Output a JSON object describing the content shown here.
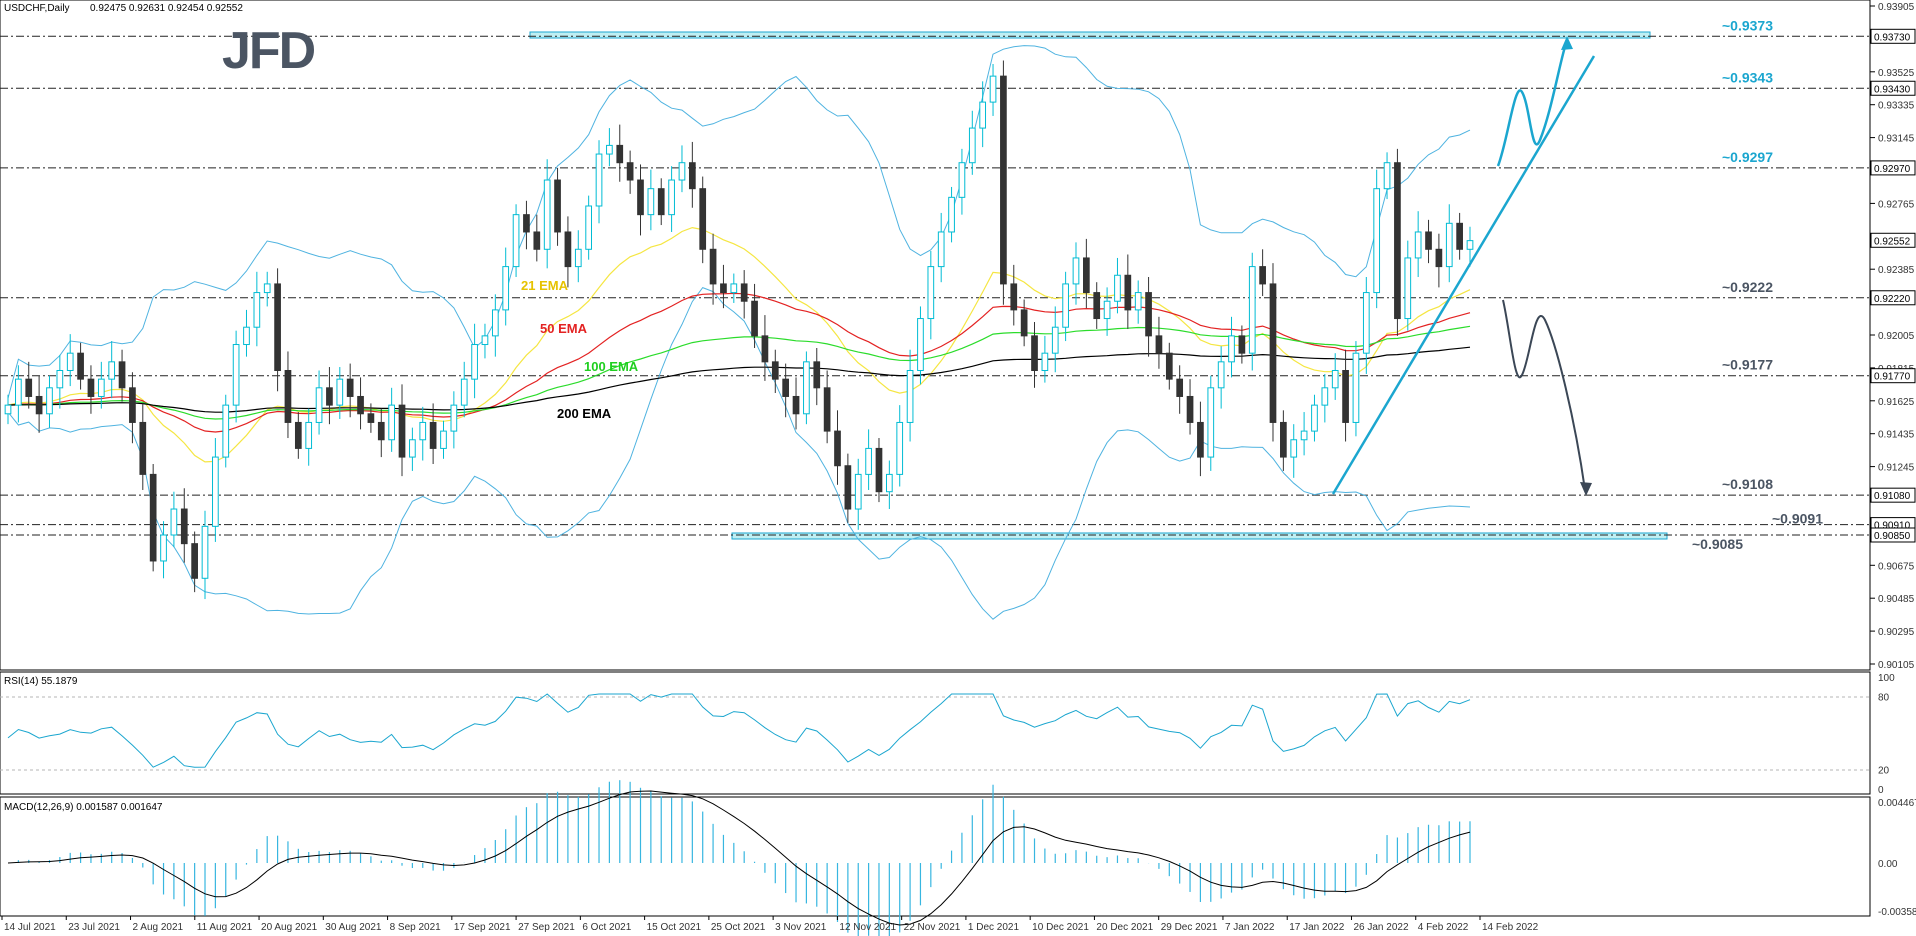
{
  "header": {
    "symbol": "USDCHF,Daily",
    "ohlc": "0.92475 0.92631 0.92454 0.92552"
  },
  "logo": "JFD",
  "colors": {
    "up": "#00bcd4",
    "down": "#333333",
    "ema21": "#f5e642",
    "ema50": "#e32222",
    "ema100": "#2bdc2b",
    "ema200": "#000000",
    "bands": "#4fb3e0",
    "annot": "#1ba6cf",
    "zone": "#bfeff3",
    "rsi": "#1ba6cf",
    "macd_hist": "#37b6e0",
    "macd_signal": "#000000",
    "arrow_down": "#3b4756"
  },
  "price_axis_ticks": [
    "0.93905",
    "0.93525",
    "0.93335",
    "0.93145",
    "0.92765",
    "0.92385",
    "0.92005",
    "0.91815",
    "0.91625",
    "0.91435",
    "0.91245",
    "0.90675",
    "0.90485",
    "0.90295",
    "0.90105"
  ],
  "price_boxes": [
    {
      "label": "0.93730",
      "value": 0.9373,
      "style": "box"
    },
    {
      "label": "0.93430",
      "value": 0.9343,
      "style": "box"
    },
    {
      "label": "0.92970",
      "value": 0.9297,
      "style": "box"
    },
    {
      "label": "0.92552",
      "value": 0.92552,
      "style": "box"
    },
    {
      "label": "0.92220",
      "value": 0.9222,
      "style": "box"
    },
    {
      "label": "0.91770",
      "value": 0.9177,
      "style": "box"
    },
    {
      "label": "0.91080",
      "value": 0.9108,
      "style": "box"
    },
    {
      "label": "0.90910",
      "value": 0.9091,
      "style": "box"
    },
    {
      "label": "0.90850",
      "value": 0.9085,
      "style": "box"
    }
  ],
  "levels": [
    {
      "value": 0.9373,
      "label": "~0.9373",
      "color": "#1ba6cf",
      "dash": true
    },
    {
      "value": 0.9343,
      "label": "~0.9343",
      "color": "#1ba6cf",
      "dash": true
    },
    {
      "value": 0.9297,
      "label": "~0.9297",
      "color": "#1ba6cf",
      "dash": true
    },
    {
      "value": 0.9222,
      "label": "~0.9222",
      "color": "#4b5563",
      "dash": true
    },
    {
      "value": 0.9177,
      "label": "~0.9177",
      "color": "#4b5563",
      "dash": true
    },
    {
      "value": 0.9108,
      "label": "~0.9108",
      "color": "#4b5563",
      "dash": true
    },
    {
      "value": 0.9091,
      "label": "~0.9091",
      "color": "#4b5563",
      "dash": true
    },
    {
      "value": 0.9085,
      "label": "~0.9085",
      "color": "#4b5563",
      "dash": true
    }
  ],
  "ema_labels": [
    {
      "text": "21 EMA",
      "color": "#e6c200"
    },
    {
      "text": "50 EMA",
      "color": "#e32222"
    },
    {
      "text": "100 EMA",
      "color": "#1fcf1f"
    },
    {
      "text": "200 EMA",
      "color": "#000000"
    }
  ],
  "x_axis": [
    "14 Jul 2021",
    "23 Jul 2021",
    "2 Aug 2021",
    "11 Aug 2021",
    "20 Aug 2021",
    "30 Aug 2021",
    "8 Sep 2021",
    "17 Sep 2021",
    "27 Sep 2021",
    "6 Oct 2021",
    "15 Oct 2021",
    "25 Oct 2021",
    "3 Nov 2021",
    "12 Nov 2021",
    "22 Nov 2021",
    "1 Dec 2021",
    "10 Dec 2021",
    "20 Dec 2021",
    "29 Dec 2021",
    "7 Jan 2022",
    "17 Jan 2022",
    "26 Jan 2022",
    "4 Feb 2022",
    "14 Feb 2022"
  ],
  "rsi": {
    "title": "RSI(14) 55.1879",
    "ticks": [
      "100",
      "80",
      "20",
      "0"
    ]
  },
  "macd": {
    "title": "MACD(12,26,9) 0.001587 0.001647",
    "ticks": [
      "0.004467",
      "0.00",
      "-0.003588"
    ]
  },
  "chart_data": {
    "type": "candlestick",
    "ylim": [
      0.90105,
      0.93905
    ],
    "y_scale": "linear",
    "close": [
      0.916,
      0.9175,
      0.9165,
      0.9155,
      0.917,
      0.918,
      0.919,
      0.9175,
      0.9165,
      0.9175,
      0.9185,
      0.917,
      0.915,
      0.912,
      0.907,
      0.9085,
      0.91,
      0.908,
      0.906,
      0.909,
      0.913,
      0.916,
      0.9195,
      0.9205,
      0.9225,
      0.923,
      0.918,
      0.915,
      0.9135,
      0.915,
      0.917,
      0.916,
      0.9175,
      0.9165,
      0.9155,
      0.915,
      0.914,
      0.916,
      0.913,
      0.914,
      0.915,
      0.9135,
      0.9145,
      0.916,
      0.9175,
      0.9195,
      0.92,
      0.9215,
      0.924,
      0.927,
      0.926,
      0.925,
      0.929,
      0.926,
      0.924,
      0.925,
      0.9275,
      0.9305,
      0.931,
      0.93,
      0.929,
      0.927,
      0.9285,
      0.927,
      0.929,
      0.93,
      0.9285,
      0.925,
      0.923,
      0.9225,
      0.923,
      0.922,
      0.92,
      0.9185,
      0.9175,
      0.9165,
      0.9155,
      0.9185,
      0.917,
      0.9145,
      0.9125,
      0.91,
      0.912,
      0.9135,
      0.911,
      0.912,
      0.915,
      0.918,
      0.921,
      0.924,
      0.926,
      0.928,
      0.93,
      0.932,
      0.9335,
      0.935,
      0.923,
      0.9215,
      0.92,
      0.918,
      0.919,
      0.9205,
      0.923,
      0.9245,
      0.9225,
      0.921,
      0.922,
      0.9235,
      0.9215,
      0.9225,
      0.92,
      0.919,
      0.9175,
      0.9165,
      0.915,
      0.913,
      0.917,
      0.9185,
      0.92,
      0.919,
      0.924,
      0.923,
      0.915,
      0.913,
      0.914,
      0.9145,
      0.916,
      0.917,
      0.918,
      0.915,
      0.919,
      0.9225,
      0.9285,
      0.93,
      0.921,
      0.9245,
      0.926,
      0.925,
      0.924,
      0.9265,
      0.925,
      0.9255
    ]
  }
}
